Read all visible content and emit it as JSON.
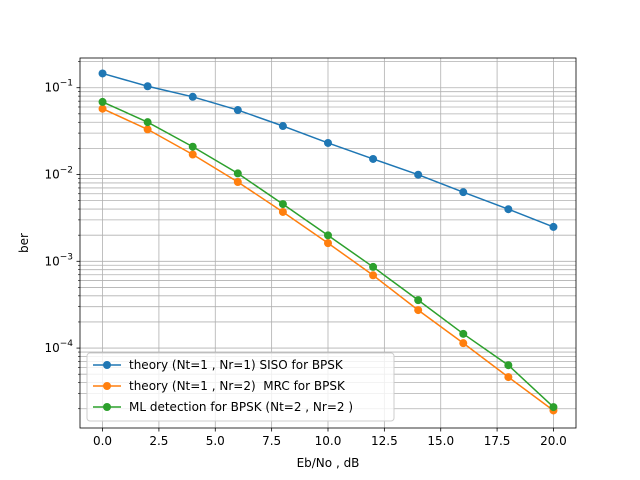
{
  "chart_data": {
    "type": "line",
    "title": "",
    "xlabel": "Eb/No , dB",
    "ylabel": "ber",
    "xlim": [
      -1,
      21
    ],
    "ylim": [
      1.2e-05,
      0.22
    ],
    "yscale": "log",
    "grid": "major and minor",
    "legend_position": "lower-left",
    "x": [
      0,
      2,
      4,
      6,
      8,
      10,
      12,
      14,
      16,
      18,
      20
    ],
    "x_ticks": [
      {
        "value": 0.0,
        "label": "0.0"
      },
      {
        "value": 2.5,
        "label": "2.5"
      },
      {
        "value": 5.0,
        "label": "5.0"
      },
      {
        "value": 7.5,
        "label": "7.5"
      },
      {
        "value": 10.0,
        "label": "10.0"
      },
      {
        "value": 12.5,
        "label": "12.5"
      },
      {
        "value": 15.0,
        "label": "15.0"
      },
      {
        "value": 17.5,
        "label": "17.5"
      },
      {
        "value": 20.0,
        "label": "20.0"
      }
    ],
    "y_ticks": [
      {
        "value": 0.1,
        "base": "10",
        "exp": "−1"
      },
      {
        "value": 0.01,
        "base": "10",
        "exp": "−2"
      },
      {
        "value": 0.001,
        "base": "10",
        "exp": "−3"
      },
      {
        "value": 0.0001,
        "base": "10",
        "exp": "−4"
      }
    ],
    "series": [
      {
        "name": "theory (Nt=1 , Nr=1) SISO for BPSK",
        "color": "#1f77b4",
        "values": [
          0.146,
          0.104,
          0.0786,
          0.0553,
          0.0362,
          0.0231,
          0.0151,
          0.00995,
          0.00626,
          0.00398,
          0.00249
        ]
      },
      {
        "name": "theory (Nt=1 , Nr=2)  MRC for BPSK",
        "color": "#ff7f0e",
        "values": [
          0.0573,
          0.0331,
          0.017,
          0.0082,
          0.0037,
          0.00162,
          0.00069,
          0.000274,
          0.000114,
          4.63e-05,
          1.91e-05
        ]
      },
      {
        "name": "ML detection for BPSK (Nt=2 , Nr=2 )",
        "color": "#2ca02c",
        "values": [
          0.0686,
          0.0401,
          0.0209,
          0.0103,
          0.00456,
          0.00199,
          0.000861,
          0.000357,
          0.000146,
          6.35e-05,
          2.09e-05
        ]
      }
    ]
  }
}
